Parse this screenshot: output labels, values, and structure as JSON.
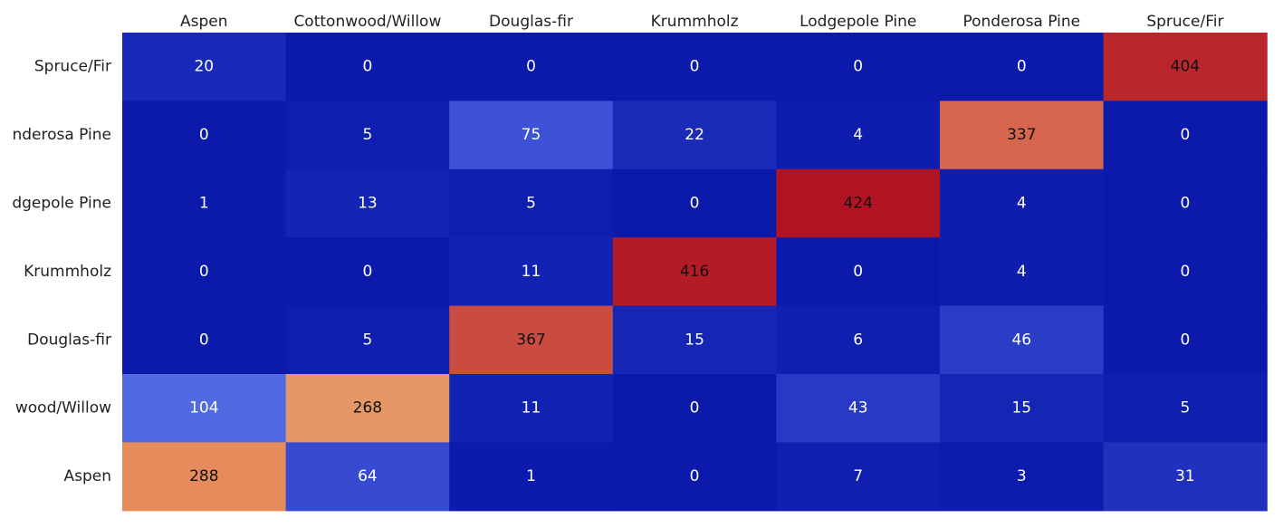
{
  "chart_data": {
    "type": "heatmap",
    "x_categories": [
      "Aspen",
      "Cottonwood/Willow",
      "Douglas-fir",
      "Krummholz",
      "Lodgepole Pine",
      "Ponderosa Pine",
      "Spruce/Fir"
    ],
    "y_labels_as_shown": [
      "Spruce/Fir",
      "nderosa Pine",
      "dgepole Pine",
      "Krummholz",
      "Douglas-fir",
      "wood/Willow",
      "Aspen"
    ],
    "values": [
      [
        20,
        0,
        0,
        0,
        0,
        0,
        404
      ],
      [
        0,
        5,
        75,
        22,
        4,
        337,
        0
      ],
      [
        1,
        13,
        5,
        0,
        424,
        4,
        0
      ],
      [
        0,
        0,
        11,
        416,
        0,
        4,
        0
      ],
      [
        0,
        5,
        367,
        15,
        6,
        46,
        0
      ],
      [
        104,
        268,
        11,
        0,
        43,
        15,
        5
      ],
      [
        288,
        64,
        1,
        0,
        7,
        3,
        31
      ]
    ],
    "value_range": [
      0,
      424
    ],
    "colorscale": [
      "#0b1aab",
      "#3a4fd6",
      "#6b86ee",
      "#dcb08e",
      "#e8905e",
      "#d05a48",
      "#b01322"
    ],
    "x_axis_position": "top",
    "legend": "none"
  }
}
